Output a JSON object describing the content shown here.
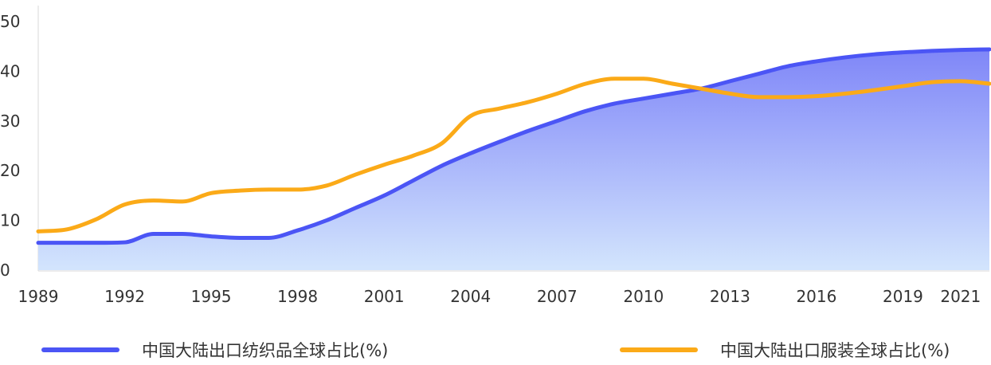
{
  "chart_data": {
    "type": "area",
    "x": [
      1989,
      1990,
      1991,
      1992,
      1993,
      1994,
      1995,
      1996,
      1997,
      1998,
      1999,
      2000,
      2001,
      2002,
      2003,
      2004,
      2005,
      2006,
      2007,
      2008,
      2009,
      2010,
      2011,
      2012,
      2013,
      2014,
      2015,
      2016,
      2017,
      2018,
      2019,
      2020,
      2021,
      2022
    ],
    "x_ticks": [
      "1989",
      "1992",
      "1995",
      "1998",
      "2001",
      "2004",
      "2007",
      "2010",
      "2013",
      "2016",
      "2019",
      "2021"
    ],
    "y_ticks": [
      "0",
      "10",
      "20",
      "30",
      "40",
      "50"
    ],
    "ylim": [
      0,
      50
    ],
    "series": [
      {
        "name": "中国大陆出口纺织品全球占比(%)",
        "color": "#4b55f5",
        "fill": true,
        "values": [
          5.5,
          5.5,
          5.5,
          5.6,
          7.3,
          7.3,
          6.8,
          6.5,
          6.5,
          8.0,
          10.0,
          12.5,
          15.0,
          18.0,
          21.0,
          23.5,
          25.8,
          28.0,
          30.0,
          32.0,
          33.5,
          34.5,
          35.5,
          36.5,
          38.0,
          39.5,
          41.0,
          42.0,
          42.8,
          43.4,
          43.8,
          44.1,
          44.3,
          44.4
        ]
      },
      {
        "name": "中国大陆出口服装全球占比(%)",
        "color": "#fbaa18",
        "fill": false,
        "values": [
          7.8,
          8.2,
          10.2,
          13.2,
          14.0,
          13.8,
          15.5,
          16.0,
          16.2,
          16.2,
          17.0,
          19.2,
          21.2,
          23.0,
          25.5,
          31.0,
          32.5,
          33.8,
          35.5,
          37.5,
          38.5,
          38.5,
          37.5,
          36.5,
          35.5,
          34.8,
          34.8,
          35.0,
          35.5,
          36.2,
          37.0,
          37.8,
          38.0,
          37.5
        ]
      }
    ],
    "legend_position": "bottom",
    "grid": false
  }
}
